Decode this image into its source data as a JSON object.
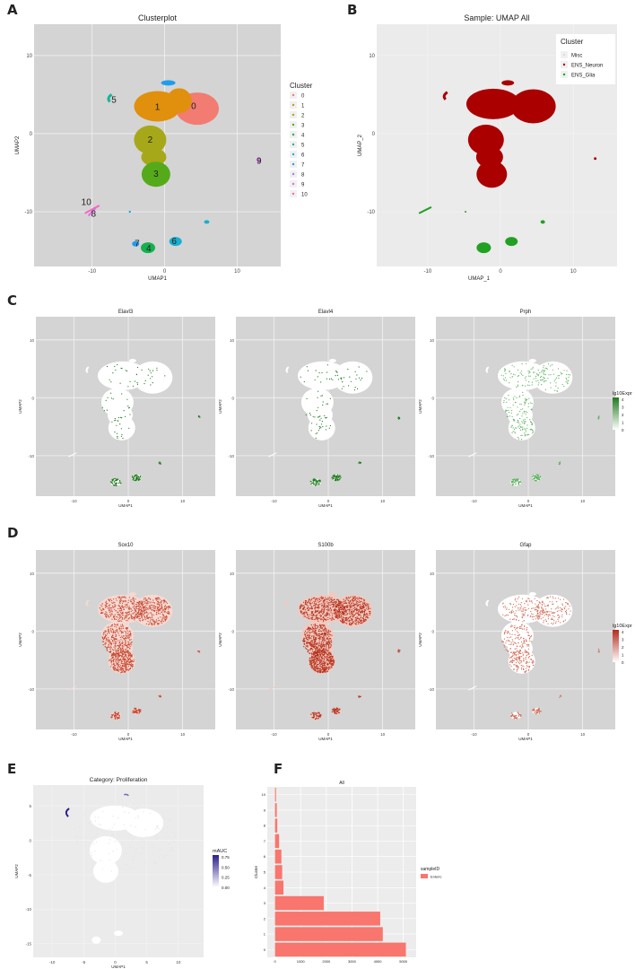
{
  "panels": {
    "A": "A",
    "B": "B",
    "C": "C",
    "D": "D",
    "E": "E",
    "F": "F"
  },
  "colors": {
    "panel_bg": "#d4d4d4",
    "panel_bg_light": "#ebebeb",
    "grid": "#f2f2f2",
    "cluster_colors": [
      "#f27b72",
      "#e0900c",
      "#a7a819",
      "#55aa1a",
      "#14b04f",
      "#19b493",
      "#17aed0",
      "#1d9df0",
      "#9f7cf6",
      "#df6be8",
      "#f769b8"
    ],
    "neuron": "#aa0000",
    "glia": "#22a022",
    "expr_green": "#1d7a1d",
    "expr_red": "#b52a1a",
    "auc": "#2b1f8a",
    "bar": "#f8766d"
  },
  "chart_data": [
    {
      "panel": "A",
      "type": "scatter",
      "title": "Clusterplot",
      "xlabel": "UMAP1",
      "ylabel": "UMAP2",
      "xticks": [
        "-10",
        "0",
        "10"
      ],
      "yticks": [
        "10",
        "0",
        "-10"
      ],
      "xlim": [
        -18,
        16
      ],
      "ylim": [
        -17,
        14
      ],
      "legend_title": "Cluster",
      "legend_placement": "right",
      "legend": [
        "0",
        "1",
        "2",
        "3",
        "4",
        "5",
        "6",
        "7",
        "8",
        "9",
        "10"
      ],
      "cluster_labels": [
        {
          "label": "0",
          "x": 4,
          "y": 3.5
        },
        {
          "label": "1",
          "x": -1,
          "y": 3.4
        },
        {
          "label": "2",
          "x": -2,
          "y": -0.8
        },
        {
          "label": "3",
          "x": -1.2,
          "y": -5.2
        },
        {
          "label": "4",
          "x": -2.2,
          "y": -14.7
        },
        {
          "label": "5",
          "x": -7,
          "y": 4.3
        },
        {
          "label": "6",
          "x": 1.3,
          "y": -13.8
        },
        {
          "label": "7",
          "x": -3.8,
          "y": -14.1
        },
        {
          "label": "8",
          "x": -9.8,
          "y": -10.3
        },
        {
          "label": "9",
          "x": 13,
          "y": -3.5
        },
        {
          "label": "10",
          "x": -10.8,
          "y": -8.8
        }
      ]
    },
    {
      "panel": "B",
      "type": "scatter",
      "title": "Sample: UMAP All",
      "xlabel": "UMAP_1",
      "ylabel": "UMAP_2",
      "xticks": [
        "-10",
        "0",
        "10"
      ],
      "yticks": [
        "10",
        "0",
        "-10"
      ],
      "xlim": [
        -17,
        16
      ],
      "ylim": [
        -17,
        14
      ],
      "legend_title": "Cluster",
      "legend_placement": "top-right",
      "legend": [
        "Misc",
        "ENS_Neuron",
        "ENS_Glia"
      ]
    },
    {
      "panel": "C",
      "type": "scatter",
      "subplots": [
        "Elavl3",
        "Elavl4",
        "Prph"
      ],
      "xlabel": "UMAP1",
      "ylabel": "UMAP2",
      "xticks": [
        "-10",
        "0",
        "10"
      ],
      "yticks": [
        "10",
        "0",
        "-10"
      ],
      "legend_title": "lg10Expr",
      "legend_ticks": [
        "4",
        "3",
        "2",
        "1",
        "0"
      ]
    },
    {
      "panel": "D",
      "type": "scatter",
      "subplots": [
        "Sox10",
        "S100b",
        "Gfap"
      ],
      "xlabel": "UMAP1",
      "ylabel": "UMAP2",
      "xticks": [
        "-10",
        "0",
        "10"
      ],
      "yticks": [
        "10",
        "0",
        "-10"
      ],
      "legend_title": "lg10Expr",
      "legend_ticks": [
        "4",
        "3",
        "2",
        "1",
        "0"
      ]
    },
    {
      "panel": "E",
      "type": "scatter",
      "title": "Category: Proliferation",
      "xlabel": "UMAP1",
      "ylabel": "UMAP2",
      "xticks": [
        "-10",
        "-5",
        "0",
        "5",
        "10"
      ],
      "yticks": [
        "5",
        "0",
        "-5",
        "-10",
        "-15"
      ],
      "legend_title": "mAUC",
      "legend_ticks": [
        "0.75",
        "0.50",
        "0.25",
        "0.00"
      ]
    },
    {
      "panel": "F",
      "type": "bar",
      "orientation": "horizontal",
      "title": "All",
      "xlabel": "",
      "ylabel": "Cluster",
      "categories": [
        "0",
        "1",
        "2",
        "3",
        "4",
        "5",
        "6",
        "7",
        "8",
        "9",
        "10"
      ],
      "values": [
        5100,
        4200,
        4100,
        1900,
        330,
        280,
        250,
        160,
        90,
        70,
        40
      ],
      "xticks": [
        "0",
        "1000",
        "2000",
        "3000",
        "4000",
        "5000"
      ],
      "xlim": [
        -300,
        5500
      ],
      "legend_title": "sampleID",
      "legend": [
        "Enteric"
      ]
    }
  ]
}
